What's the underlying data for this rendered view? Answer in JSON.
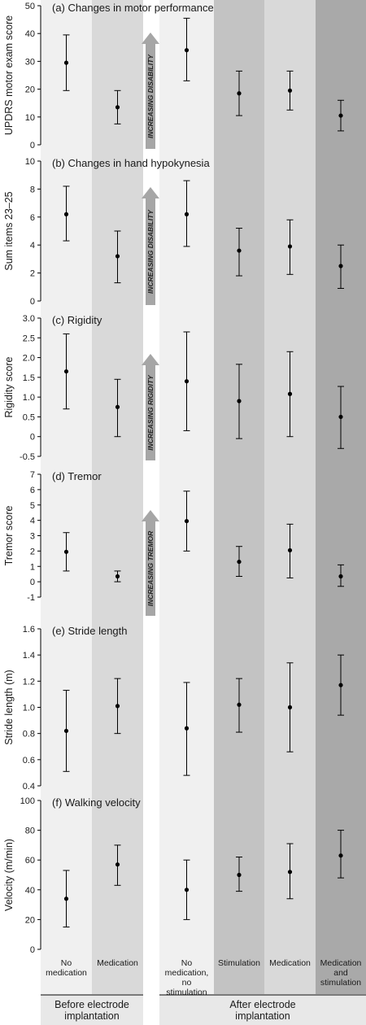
{
  "conditions": [
    {
      "id": "c1",
      "label_lines": [
        "No",
        "medication"
      ],
      "group": "before",
      "shade": "#f0f0f0"
    },
    {
      "id": "c2",
      "label_lines": [
        "Medication"
      ],
      "group": "before",
      "shade": "#d9d9d9"
    },
    {
      "id": "c3",
      "label_lines": [
        "No",
        "medication,",
        "no",
        "stimulation"
      ],
      "group": "after",
      "shade": "#f0f0f0"
    },
    {
      "id": "c4",
      "label_lines": [
        "Stimulation"
      ],
      "group": "after",
      "shade": "#c3c3c3"
    },
    {
      "id": "c5",
      "label_lines": [
        "Medication"
      ],
      "group": "after",
      "shade": "#d9d9d9"
    },
    {
      "id": "c6",
      "label_lines": [
        "Medication",
        "and",
        "stimulation"
      ],
      "group": "after",
      "shade": "#a9a9a9"
    }
  ],
  "groups": {
    "before": [
      "Before electrode",
      "implantation"
    ],
    "after": [
      "After electrode",
      "implantation"
    ]
  },
  "colors": {
    "marker": "#000000",
    "arrow": "#a6a6a6",
    "group_bar": "#e8e8e8"
  },
  "chart_data": [
    {
      "type": "scatter",
      "panel": "a",
      "title": "(a) Changes in motor performance",
      "ylabel": "UPDRS motor exam score",
      "ylim": [
        0,
        50
      ],
      "yticks": [
        "0",
        "10",
        "20",
        "30",
        "40",
        "50"
      ],
      "arrow_label": "INCREASING DISABILITY",
      "mean": [
        29.5,
        13.5,
        34,
        18.5,
        19.5,
        10.5
      ],
      "err_low": [
        19.5,
        7.5,
        23,
        10.5,
        12.5,
        5
      ],
      "err_high": [
        39.5,
        19.5,
        45.5,
        26.5,
        26.5,
        16
      ]
    },
    {
      "type": "scatter",
      "panel": "b",
      "title": "(b) Changes in hand hypokynesia",
      "ylabel": "Sum items 23–25",
      "ylim": [
        0,
        10
      ],
      "yticks": [
        "0",
        "2",
        "4",
        "6",
        "8",
        "10"
      ],
      "arrow_label": "INCREASING DISABILITY",
      "mean": [
        6.2,
        3.2,
        6.2,
        3.6,
        3.9,
        2.5
      ],
      "err_low": [
        4.3,
        1.3,
        3.9,
        1.8,
        1.9,
        0.9
      ],
      "err_high": [
        8.2,
        5.0,
        8.6,
        5.2,
        5.8,
        4.0
      ]
    },
    {
      "type": "scatter",
      "panel": "c",
      "title": "(c) Rigidity",
      "ylabel": "Rigidity score",
      "ylim": [
        -0.5,
        3.0
      ],
      "yticks": [
        "-0.5",
        "0",
        "0.5",
        "1.0",
        "1.5",
        "2.0",
        "2.5",
        "3.0"
      ],
      "arrow_label": "INCREASING RIGIDITY",
      "mean": [
        1.65,
        0.75,
        1.4,
        0.9,
        1.08,
        0.5
      ],
      "err_low": [
        0.7,
        0.0,
        0.15,
        -0.05,
        0.0,
        -0.3
      ],
      "err_high": [
        2.6,
        1.45,
        2.65,
        1.83,
        2.15,
        1.27
      ]
    },
    {
      "type": "scatter",
      "panel": "d",
      "title": "(d) Tremor",
      "ylabel": "Tremor score",
      "ylim": [
        -1,
        7
      ],
      "yticks": [
        "-1",
        "0",
        "1",
        "2",
        "3",
        "4",
        "5",
        "6",
        "7"
      ],
      "arrow_label": "INCREASING TREMOR",
      "mean": [
        1.95,
        0.35,
        3.95,
        1.3,
        2.05,
        0.35
      ],
      "err_low": [
        0.7,
        0.0,
        2.0,
        0.35,
        0.25,
        -0.3
      ],
      "err_high": [
        3.2,
        0.7,
        5.9,
        2.3,
        3.75,
        1.1
      ]
    },
    {
      "type": "scatter",
      "panel": "e",
      "title": "(e) Stride length",
      "ylabel": "Stride length (m)",
      "ylim": [
        0.4,
        1.6
      ],
      "yticks": [
        "0.4",
        "0.6",
        "0.8",
        "1.0",
        "1.2",
        "1.4",
        "1.6"
      ],
      "mean": [
        0.82,
        1.01,
        0.84,
        1.02,
        1.0,
        1.17
      ],
      "err_low": [
        0.51,
        0.8,
        0.48,
        0.81,
        0.66,
        0.94
      ],
      "err_high": [
        1.13,
        1.22,
        1.19,
        1.22,
        1.34,
        1.4
      ]
    },
    {
      "type": "scatter",
      "panel": "f",
      "title": "(f)  Walking velocity",
      "ylabel": "Velocity (m/min)",
      "ylim": [
        0,
        100
      ],
      "yticks": [
        "0",
        "20",
        "40",
        "60",
        "80",
        "100"
      ],
      "mean": [
        34,
        57,
        40,
        50,
        52,
        63
      ],
      "err_low": [
        15,
        43,
        20,
        39,
        34,
        48
      ],
      "err_high": [
        53,
        70,
        60,
        62,
        71,
        80
      ]
    }
  ]
}
